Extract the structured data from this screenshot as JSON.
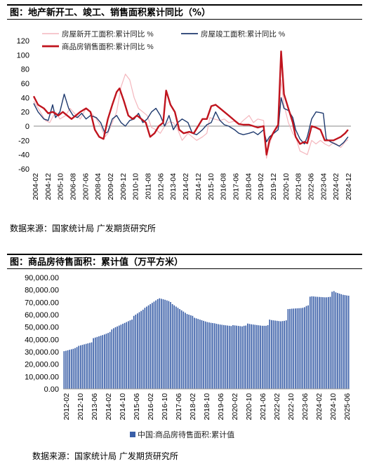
{
  "chart1": {
    "title": "图：地产新开工、竣工、销售面积累计同比（%）",
    "source": "数据来源：国家统计局  广发期货研究所",
    "chart_data": {
      "type": "line",
      "ylim": [
        -60,
        120
      ],
      "yticks": [
        -60,
        -40,
        -20,
        0,
        20,
        40,
        60,
        80,
        100,
        120
      ],
      "x_tick_labels": [
        "2004-02",
        "2004-12",
        "2005-10",
        "2006-08",
        "2007-06",
        "2008-04",
        "2009-02",
        "2009-12",
        "2010-10",
        "2011-08",
        "2012-06",
        "2013-04",
        "2014-02",
        "2014-12",
        "2015-10",
        "2016-08",
        "2017-06",
        "2018-04",
        "2019-02",
        "2019-12",
        "2020-10",
        "2021-08",
        "2022-06",
        "2023-04",
        "2024-02",
        "2024-12"
      ],
      "legend_position": "top",
      "grid": false,
      "series": [
        {
          "name": "房屋新开工面积:累计同比 %",
          "color": "#f4b6bd",
          "width": 1.2,
          "points": [
            [
              2004.1,
              35
            ],
            [
              2004.5,
              22
            ],
            [
              2004.9,
              8
            ],
            [
              2005.2,
              5
            ],
            [
              2005.6,
              20
            ],
            [
              2005.9,
              10
            ],
            [
              2006.3,
              15
            ],
            [
              2006.6,
              25
            ],
            [
              2006.9,
              18
            ],
            [
              2007.3,
              10
            ],
            [
              2007.7,
              25
            ],
            [
              2008.0,
              20
            ],
            [
              2008.4,
              10
            ],
            [
              2008.7,
              0
            ],
            [
              2009.0,
              -15
            ],
            [
              2009.2,
              -10
            ],
            [
              2009.5,
              5
            ],
            [
              2009.8,
              20
            ],
            [
              2010.1,
              55
            ],
            [
              2010.4,
              73
            ],
            [
              2010.7,
              65
            ],
            [
              2011.0,
              40
            ],
            [
              2011.3,
              25
            ],
            [
              2011.6,
              20
            ],
            [
              2011.9,
              15
            ],
            [
              2012.2,
              -2
            ],
            [
              2012.5,
              -5
            ],
            [
              2012.8,
              -10
            ],
            [
              2013.1,
              0
            ],
            [
              2013.4,
              6
            ],
            [
              2013.7,
              5
            ],
            [
              2014.0,
              -5
            ],
            [
              2014.3,
              -20
            ],
            [
              2014.7,
              -10
            ],
            [
              2015.0,
              -15
            ],
            [
              2015.3,
              -20
            ],
            [
              2015.7,
              -15
            ],
            [
              2016.0,
              -10
            ],
            [
              2016.2,
              12
            ],
            [
              2016.5,
              10
            ],
            [
              2016.9,
              8
            ],
            [
              2017.2,
              10
            ],
            [
              2017.5,
              5
            ],
            [
              2017.9,
              7
            ],
            [
              2018.2,
              2
            ],
            [
              2018.5,
              8
            ],
            [
              2018.9,
              15
            ],
            [
              2019.2,
              5
            ],
            [
              2019.5,
              10
            ],
            [
              2019.9,
              8
            ],
            [
              2020.1,
              -45
            ],
            [
              2020.3,
              -25
            ],
            [
              2020.6,
              -8
            ],
            [
              2020.9,
              -2
            ],
            [
              2021.1,
              65
            ],
            [
              2021.3,
              30
            ],
            [
              2021.6,
              5
            ],
            [
              2021.9,
              -10
            ],
            [
              2022.1,
              -15
            ],
            [
              2022.4,
              -35
            ],
            [
              2022.7,
              -38
            ],
            [
              2022.9,
              -40
            ],
            [
              2023.2,
              -20
            ],
            [
              2023.5,
              -25
            ],
            [
              2023.8,
              -20
            ],
            [
              2024.1,
              -25
            ],
            [
              2024.4,
              -28
            ],
            [
              2024.7,
              -23
            ],
            [
              2024.9,
              -25
            ],
            [
              2025.2,
              -30
            ],
            [
              2025.5,
              -22
            ],
            [
              2025.7,
              -19
            ]
          ]
        },
        {
          "name": "房屋竣工面积:累计同比 %",
          "color": "#1f3a6e",
          "width": 1.4,
          "points": [
            [
              2004.1,
              32
            ],
            [
              2004.4,
              20
            ],
            [
              2004.8,
              10
            ],
            [
              2005.1,
              8
            ],
            [
              2005.4,
              30
            ],
            [
              2005.6,
              12
            ],
            [
              2005.9,
              20
            ],
            [
              2006.2,
              45
            ],
            [
              2006.5,
              25
            ],
            [
              2006.8,
              15
            ],
            [
              2007.1,
              12
            ],
            [
              2007.4,
              18
            ],
            [
              2007.7,
              10
            ],
            [
              2008.0,
              15
            ],
            [
              2008.4,
              12
            ],
            [
              2008.7,
              5
            ],
            [
              2009.0,
              -10
            ],
            [
              2009.2,
              -8
            ],
            [
              2009.5,
              10
            ],
            [
              2009.8,
              15
            ],
            [
              2010.1,
              5
            ],
            [
              2010.4,
              0
            ],
            [
              2010.7,
              8
            ],
            [
              2011.0,
              10
            ],
            [
              2011.3,
              18
            ],
            [
              2011.6,
              5
            ],
            [
              2011.9,
              10
            ],
            [
              2012.2,
              20
            ],
            [
              2012.5,
              25
            ],
            [
              2012.8,
              15
            ],
            [
              2013.1,
              0
            ],
            [
              2013.4,
              15
            ],
            [
              2013.7,
              -5
            ],
            [
              2014.0,
              5
            ],
            [
              2014.3,
              10
            ],
            [
              2014.7,
              5
            ],
            [
              2015.0,
              -10
            ],
            [
              2015.3,
              -12
            ],
            [
              2015.7,
              -5
            ],
            [
              2016.0,
              2
            ],
            [
              2016.3,
              5
            ],
            [
              2016.6,
              20
            ],
            [
              2016.9,
              8
            ],
            [
              2017.2,
              2
            ],
            [
              2017.5,
              0
            ],
            [
              2017.9,
              -5
            ],
            [
              2018.2,
              -10
            ],
            [
              2018.5,
              -12
            ],
            [
              2018.9,
              -10
            ],
            [
              2019.2,
              -8
            ],
            [
              2019.5,
              -12
            ],
            [
              2019.9,
              -5
            ],
            [
              2020.1,
              -22
            ],
            [
              2020.3,
              -15
            ],
            [
              2020.6,
              -10
            ],
            [
              2020.9,
              -5
            ],
            [
              2021.1,
              40
            ],
            [
              2021.3,
              25
            ],
            [
              2021.6,
              22
            ],
            [
              2021.9,
              12
            ],
            [
              2022.1,
              -5
            ],
            [
              2022.4,
              -18
            ],
            [
              2022.7,
              -25
            ],
            [
              2022.9,
              -15
            ],
            [
              2023.2,
              10
            ],
            [
              2023.5,
              20
            ],
            [
              2023.8,
              19
            ],
            [
              2024.0,
              18
            ],
            [
              2024.2,
              -18
            ],
            [
              2024.5,
              -22
            ],
            [
              2024.8,
              -25
            ],
            [
              2025.1,
              -28
            ],
            [
              2025.4,
              -23
            ],
            [
              2025.7,
              -15
            ]
          ]
        },
        {
          "name": "商品房销售面积:累计同比 %",
          "color": "#c0141e",
          "width": 2.4,
          "points": [
            [
              2004.1,
              42
            ],
            [
              2004.4,
              30
            ],
            [
              2004.8,
              25
            ],
            [
              2005.1,
              18
            ],
            [
              2005.4,
              20
            ],
            [
              2005.8,
              15
            ],
            [
              2006.1,
              20
            ],
            [
              2006.4,
              15
            ],
            [
              2006.7,
              10
            ],
            [
              2007.0,
              15
            ],
            [
              2007.3,
              20
            ],
            [
              2007.7,
              25
            ],
            [
              2008.0,
              20
            ],
            [
              2008.3,
              -5
            ],
            [
              2008.6,
              -15
            ],
            [
              2008.9,
              -18
            ],
            [
              2009.2,
              10
            ],
            [
              2009.5,
              30
            ],
            [
              2009.8,
              48
            ],
            [
              2010.0,
              53
            ],
            [
              2010.3,
              35
            ],
            [
              2010.6,
              15
            ],
            [
              2010.9,
              10
            ],
            [
              2011.2,
              15
            ],
            [
              2011.5,
              10
            ],
            [
              2011.8,
              5
            ],
            [
              2012.1,
              -15
            ],
            [
              2012.4,
              -10
            ],
            [
              2012.7,
              0
            ],
            [
              2013.0,
              5
            ],
            [
              2013.2,
              50
            ],
            [
              2013.5,
              30
            ],
            [
              2013.8,
              20
            ],
            [
              2014.1,
              -5
            ],
            [
              2014.4,
              -10
            ],
            [
              2014.8,
              -8
            ],
            [
              2015.1,
              -10
            ],
            [
              2015.4,
              0
            ],
            [
              2015.7,
              10
            ],
            [
              2016.0,
              10
            ],
            [
              2016.3,
              28
            ],
            [
              2016.6,
              30
            ],
            [
              2016.9,
              25
            ],
            [
              2017.2,
              20
            ],
            [
              2017.5,
              15
            ],
            [
              2017.9,
              8
            ],
            [
              2018.2,
              3
            ],
            [
              2018.5,
              2
            ],
            [
              2018.9,
              2
            ],
            [
              2019.2,
              0
            ],
            [
              2019.5,
              -2
            ],
            [
              2019.9,
              0
            ],
            [
              2020.1,
              -40
            ],
            [
              2020.3,
              -20
            ],
            [
              2020.6,
              -8
            ],
            [
              2020.9,
              2
            ],
            [
              2021.1,
              105
            ],
            [
              2021.3,
              45
            ],
            [
              2021.6,
              25
            ],
            [
              2021.9,
              5
            ],
            [
              2022.1,
              -15
            ],
            [
              2022.4,
              -25
            ],
            [
              2022.7,
              -22
            ],
            [
              2022.9,
              -24
            ],
            [
              2023.2,
              0
            ],
            [
              2023.5,
              -2
            ],
            [
              2023.8,
              -5
            ],
            [
              2024.1,
              -20
            ],
            [
              2024.4,
              -20
            ],
            [
              2024.7,
              -20
            ],
            [
              2024.9,
              -18
            ],
            [
              2025.2,
              -15
            ],
            [
              2025.5,
              -10
            ],
            [
              2025.7,
              -5
            ]
          ]
        }
      ]
    }
  },
  "chart2": {
    "title": "图：商品房待售面积：累计值（万平方米）",
    "source": "数据来源：国家统计局  广发期货研究所",
    "chart_data": {
      "type": "bar",
      "series_name": "中国:商品房待售面积:累计值",
      "color": "#3a5fa8",
      "ylim": [
        0,
        90000
      ],
      "yticks": [
        "0.00",
        "10,000.00",
        "20,000.00",
        "30,000.00",
        "40,000.00",
        "50,000.00",
        "60,000.00",
        "70,000.00",
        "80,000.00",
        "90,000.00"
      ],
      "x_tick_labels": [
        "2012-02",
        "2012-10",
        "2013-06",
        "2014-02",
        "2014-10",
        "2015-06",
        "2016-02",
        "2016-10",
        "2017-06",
        "2018-02",
        "2018-10",
        "2019-06",
        "2020-02",
        "2020-10",
        "2021-06",
        "2022-02",
        "2022-10",
        "2023-06",
        "2024-02",
        "2024-10",
        "2025-06"
      ],
      "values": [
        30500,
        30800,
        31200,
        31600,
        32000,
        32400,
        33000,
        33800,
        34800,
        35200,
        35600,
        36000,
        36400,
        36800,
        37200,
        37600,
        41000,
        41500,
        42000,
        42500,
        43000,
        43500,
        44000,
        44600,
        45200,
        46000,
        48000,
        49000,
        49800,
        50500,
        51200,
        51900,
        52600,
        53300,
        54000,
        54700,
        55400,
        56000,
        59000,
        60000,
        61000,
        62000,
        63000,
        64000,
        65500,
        66500,
        67500,
        68500,
        69500,
        70500,
        71500,
        72500,
        73200,
        72800,
        72400,
        72000,
        71500,
        71000,
        70200,
        68500,
        67500,
        66500,
        65500,
        64500,
        63500,
        62500,
        61500,
        60500,
        60000,
        59500,
        59000,
        57500,
        57000,
        56500,
        56000,
        55500,
        55000,
        54500,
        54000,
        53700,
        53400,
        53200,
        53000,
        52600,
        52300,
        52000,
        51800,
        51600,
        51400,
        51200,
        51000,
        50800,
        51500,
        51300,
        51100,
        50900,
        50700,
        50500,
        51000,
        51200,
        52800,
        52500,
        52200,
        52000,
        51800,
        51600,
        51400,
        51200,
        51000,
        51000,
        51000,
        51500,
        56000,
        55600,
        55400,
        55200,
        55000,
        54800,
        54600,
        54800,
        55000,
        55400,
        64500,
        64600,
        64800,
        64900,
        65000,
        65100,
        65200,
        65300,
        65500,
        66000,
        67000,
        67500,
        74500,
        74800,
        74700,
        74500,
        74400,
        74300,
        74200,
        74100,
        74000,
        74000,
        74200,
        74400,
        78500,
        79000,
        78000,
        77500,
        77000,
        76500,
        76000,
        75800,
        75500,
        75300
      ]
    }
  }
}
